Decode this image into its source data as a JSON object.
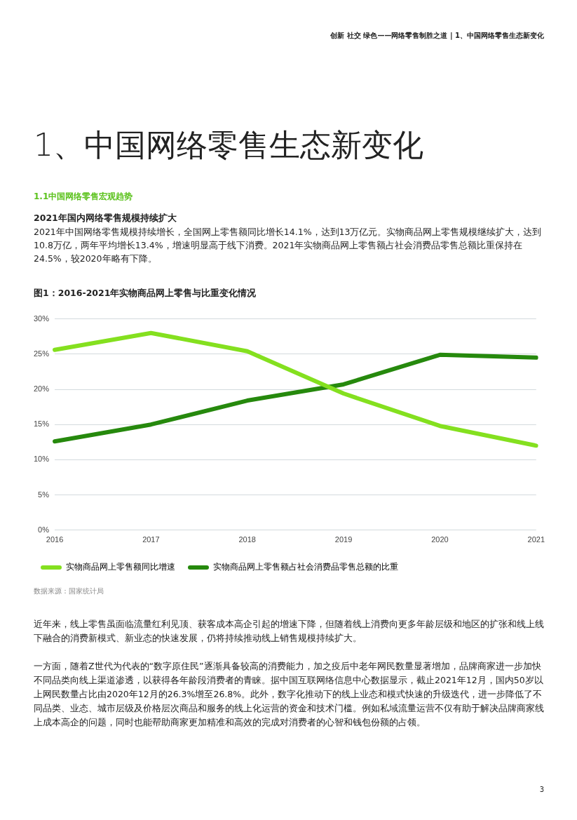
{
  "chart_data": {
    "type": "line",
    "title": "图1：2016-2021年实物商品网上零售与比重变化情况",
    "categories": [
      "2016",
      "2017",
      "2018",
      "2019",
      "2020",
      "2021"
    ],
    "series": [
      {
        "name": "实物商品网上零售额同比增速",
        "color": "#84e01f",
        "values": [
          25.6,
          28.0,
          25.4,
          19.4,
          14.8,
          12.0
        ]
      },
      {
        "name": "实物商品网上零售额占社会消费品零售总额的比重",
        "color": "#26890d",
        "values": [
          12.6,
          15.0,
          18.4,
          20.7,
          24.9,
          24.5
        ]
      }
    ],
    "ylim": [
      0,
      30
    ],
    "yticks": [
      {
        "value": 0,
        "label": "0%"
      },
      {
        "value": 5,
        "label": "5%"
      },
      {
        "value": 10,
        "label": "10%"
      },
      {
        "value": 15,
        "label": "15%"
      },
      {
        "value": 20,
        "label": "20%"
      },
      {
        "value": 25,
        "label": "25%"
      },
      {
        "value": 30,
        "label": "30%"
      }
    ],
    "grid": "y",
    "legend": "bottom left",
    "marker": "none",
    "line_style": "solid",
    "annotations": [
      "创新 社交 绿色——网络零售制胜之道 | 1、中国网络零售生态新变化",
      "1、中国网络零售生态新变化",
      "1.1中国网络零售宏观趋势",
      "2021年国内网络零售规模持续扩大",
      "2021年中国网络零售规模持续增长，全国网上零售额同比增长14.1%，达到13万亿元。实物商品网上零售规模继续扩大，达到10.8万亿，两年平均增长13.4%，增速明显高于线下消费。2021年实物商品网上零售额占社会消费品零售总额比重保持在24.5%，较2020年略有下降。",
      "数据来源：国家统计局",
      "近年来，线上零售虽面临流量红利见顶、获客成本高企引起的增速下降，但随着线上消费向更多年龄层级和地区的扩张和线上线下融合的消费新模式、新业态的快速发展，仍将持续推动线上销售规模持续扩大。",
      "一方面，随着Z世代为代表的“数字原住民”逐渐具备较高的消费能力，加之疫后中老年网民数量显著增加，品牌商家进一步加快不同品类向线上渠道渗透，以获得各年龄段消费者的青睐。据中国互联网络信息中心数据显示，截止2021年12月，国内50岁以上网民数量占比由2020年12月的26.3%增至26.8%。此外，数字化推动下的线上业态和模式快速的升级迭代，进一步降低了不同品类、业态、城市层级及价格层次商品和服务的线上化运营的资金和技术门槛。例如私域流量运营不仅有助于解决品牌商家线上成本高企的问题，同时也能帮助商家更加精准和高效的完成对消费者的心智和钱包份额的占领。",
      "3"
    ]
  }
}
